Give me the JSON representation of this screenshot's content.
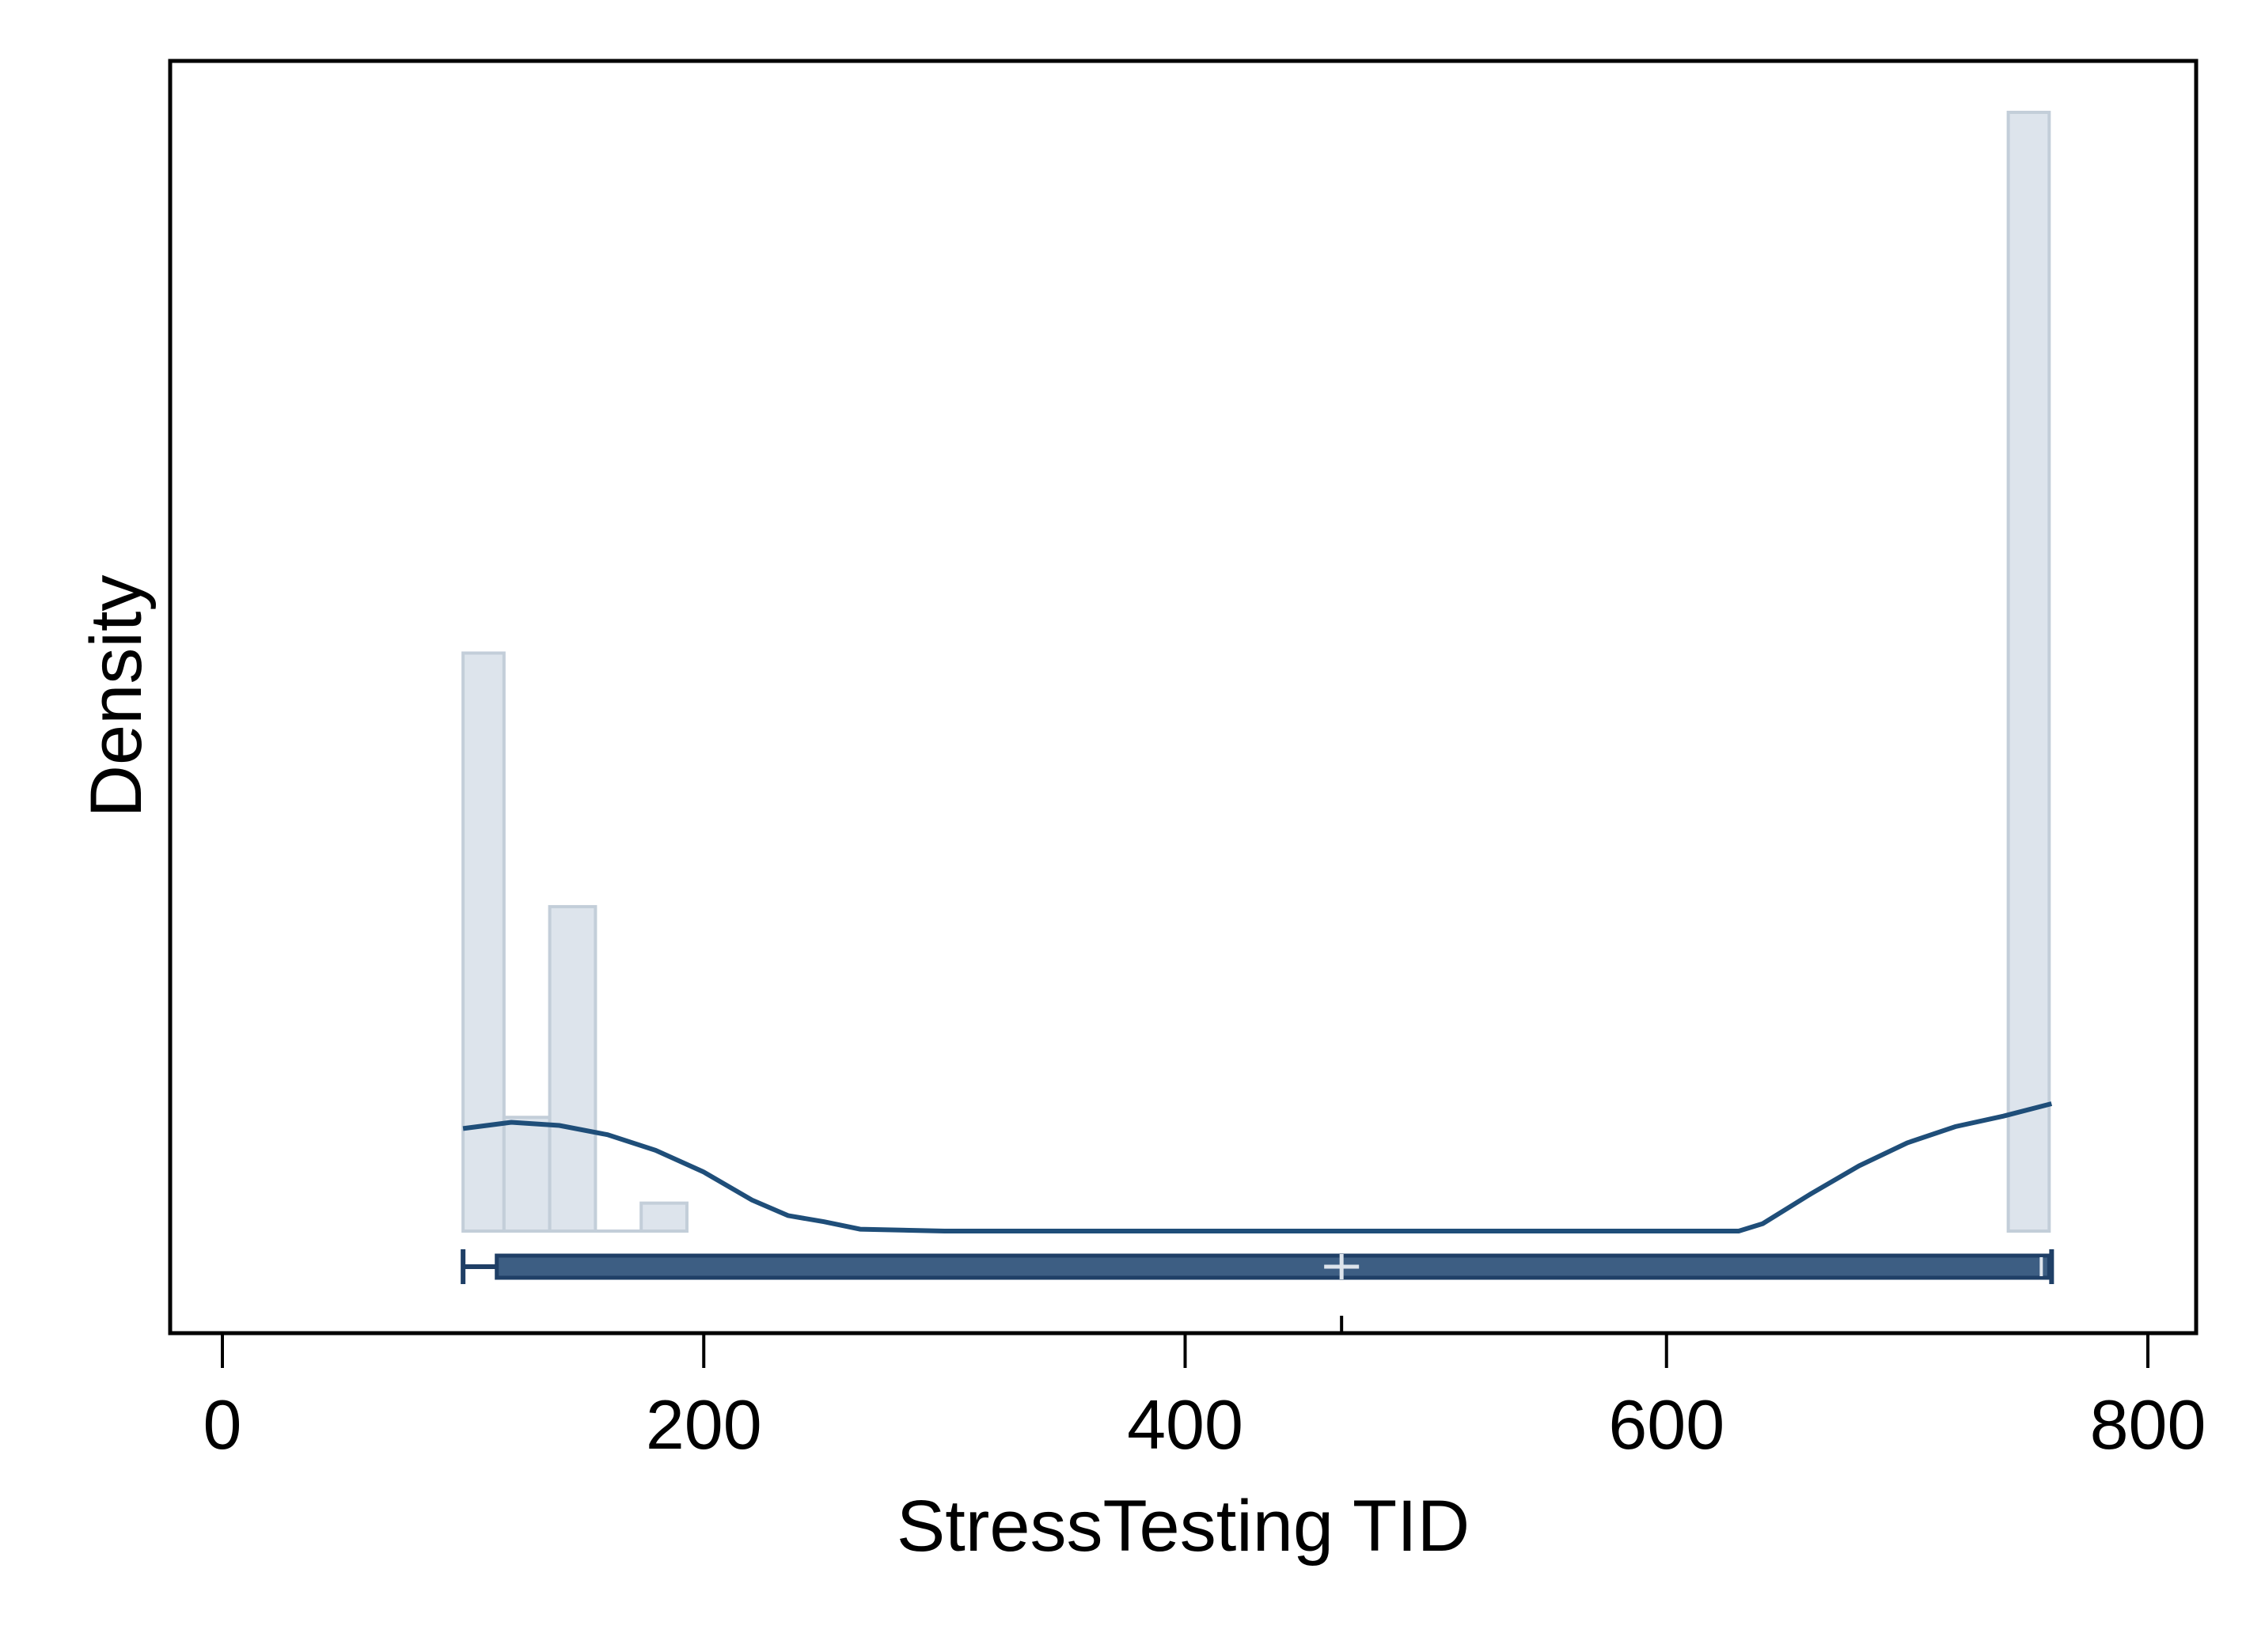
{
  "chart_data": {
    "type": "bar",
    "title": "",
    "xlabel": "StressTesting TID",
    "ylabel": "Density",
    "xlim": [
      -10,
      820
    ],
    "x_ticks": [
      0,
      200,
      400,
      600,
      800
    ],
    "x_tick_labels": [
      "0",
      "200",
      "400",
      "600",
      "800"
    ],
    "y_ticks_shown": false,
    "grid": false,
    "legend": "none",
    "series": [
      {
        "kind": "histogram",
        "bins": [
          {
            "x0": 100,
            "x1": 117,
            "density": 0.0093
          },
          {
            "x0": 117,
            "x1": 136,
            "density": 0.00183
          },
          {
            "x0": 136,
            "x1": 155,
            "density": 0.00522
          },
          {
            "x0": 155,
            "x1": 174,
            "density": 0.0
          },
          {
            "x0": 174,
            "x1": 193,
            "density": 0.00045
          },
          {
            "x0": 742,
            "x1": 759,
            "density": 0.018
          }
        ]
      },
      {
        "kind": "density-curve",
        "x": [
          100,
          120,
          140,
          160,
          180,
          200,
          220,
          235,
          250,
          265,
          300,
          400,
          500,
          600,
          630,
          640,
          660,
          680,
          700,
          720,
          740,
          760
        ],
        "y": [
          0.00165,
          0.00175,
          0.0017,
          0.00155,
          0.0013,
          0.00095,
          0.0005,
          0.00025,
          0.00015,
          3e-05,
          0.0,
          0.0,
          0.0,
          0.0,
          0.0,
          0.00012,
          0.0006,
          0.00105,
          0.00142,
          0.00168,
          0.00185,
          0.00205
        ]
      },
      {
        "kind": "boxplot",
        "min": 100,
        "q1": 114,
        "median": 465,
        "q3": 759,
        "max": 760,
        "mean": 465
      }
    ],
    "colors": {
      "bar_fill": "#dde4ec",
      "bar_stroke": "#c3ced9",
      "curve": "#1f4e79",
      "box_fill": "#3d5e83",
      "box_stroke": "#1f3f66",
      "marker": "#dde4ec",
      "axis": "#000000"
    }
  }
}
